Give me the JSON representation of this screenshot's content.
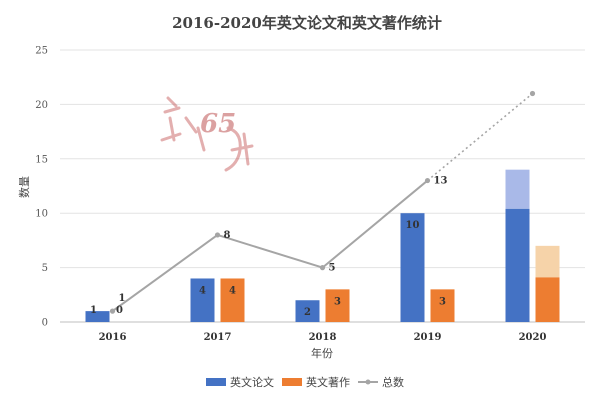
{
  "chart_data": {
    "type": "bar",
    "title": "2016-2020年英文论文和英文著作统计",
    "xlabel": "年份",
    "ylabel": "数量",
    "ylim": [
      0,
      25
    ],
    "yticks": [
      "0",
      "5",
      "10",
      "15",
      "20",
      "25"
    ],
    "grid": true,
    "legend_position": "bottom",
    "categories": [
      "2016",
      "2017",
      "2018",
      "2019",
      "2020"
    ],
    "series": [
      {
        "name": "英文论文",
        "kind": "bar",
        "color": "#4472c4",
        "values": [
          1,
          4,
          2,
          10,
          10.4
        ],
        "projected_top_2020": 14,
        "projected_color": "#a9b9e8",
        "labels": [
          "1",
          "4",
          "2",
          "10",
          ""
        ]
      },
      {
        "name": "英文著作",
        "kind": "bar",
        "color": "#ed7d31",
        "values": [
          0,
          4,
          3,
          3,
          4.1
        ],
        "projected_top_2020": 7,
        "projected_color": "#f6d3a9",
        "labels": [
          "0",
          "4",
          "3",
          "3",
          ""
        ]
      },
      {
        "name": "总数",
        "kind": "line",
        "color": "#a5a5a5",
        "values": [
          1,
          8,
          5,
          13,
          21
        ],
        "labels": [
          "1",
          "8",
          "5",
          "13",
          ""
        ],
        "dotted_last_segment": true
      }
    ]
  },
  "watermark": {
    "text": "65",
    "color": "#b03030"
  }
}
